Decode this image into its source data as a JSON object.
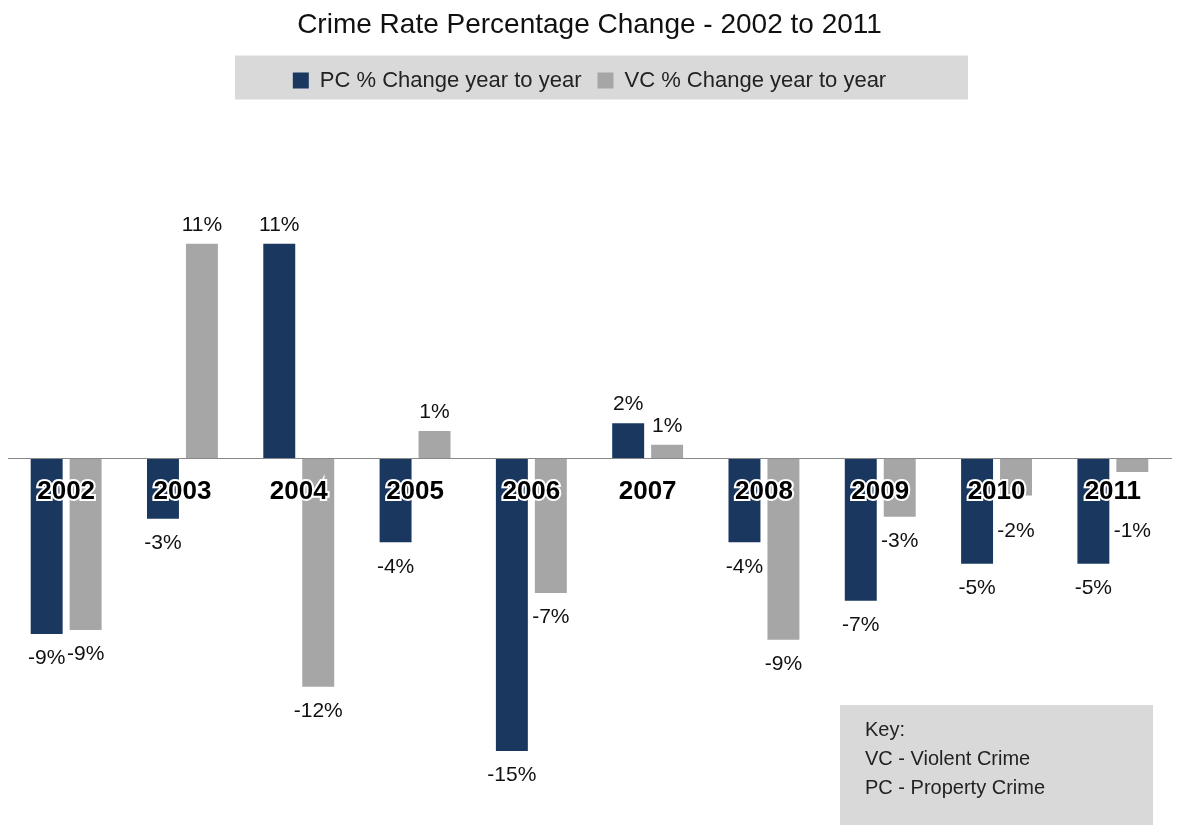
{
  "chart_data": {
    "type": "bar",
    "title": "Crime Rate Percentage Change - 2002 to 2011",
    "categories": [
      "2002",
      "2003",
      "2004",
      "2005",
      "2006",
      "2007",
      "2008",
      "2009",
      "2010",
      "2011"
    ],
    "series": [
      {
        "name": "PC % Change year to year",
        "color": "#1a3760",
        "values": [
          -9.0,
          -3.1,
          11.0,
          -4.3,
          -15.0,
          1.8,
          -4.3,
          -7.3,
          -5.4,
          -5.4
        ],
        "value_labels": [
          "-9%",
          "-3%",
          "11%",
          "-4%",
          "-15%",
          "2%",
          "-4%",
          "-7%",
          "-5%",
          "-5%"
        ]
      },
      {
        "name": "VC % Change year to year",
        "color": "#a6a6a6",
        "values": [
          -8.8,
          11.0,
          -11.7,
          1.4,
          -6.9,
          0.7,
          -9.3,
          -3.0,
          -1.9,
          -0.7
        ],
        "value_labels": [
          "-9%",
          "11%",
          "-12%",
          "1%",
          "-7%",
          "1%",
          "-9%",
          "-3%",
          "-2%",
          "-1%"
        ]
      }
    ],
    "legend": "top",
    "grid": false,
    "annotations": [
      "Key:",
      "VC - Violent Crime",
      "PC - Property Crime"
    ]
  }
}
